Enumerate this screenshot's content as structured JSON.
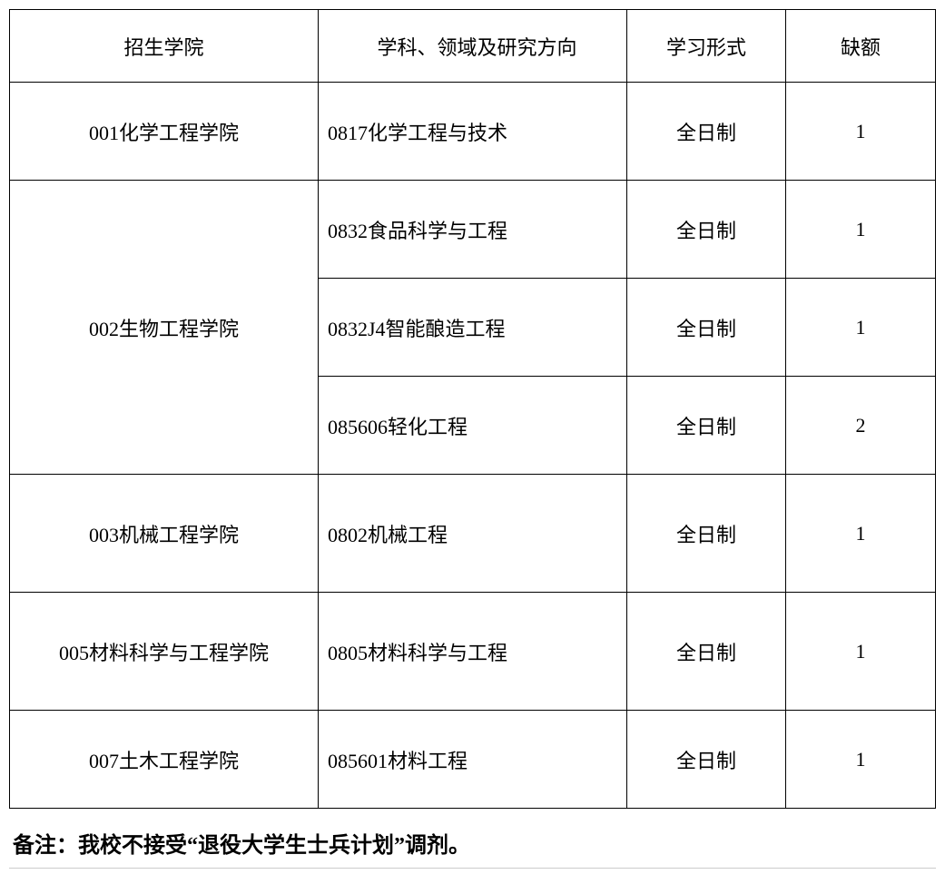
{
  "table": {
    "headers": {
      "college": "招生学院",
      "subject": "学科、领域及研究方向",
      "mode": "学习形式",
      "quota": "缺额"
    },
    "rows": [
      {
        "college": "001化学工程学院",
        "subject": "0817化学工程与技术",
        "mode": "全日制",
        "quota": "1",
        "rowspan": 1
      },
      {
        "college": "002生物工程学院",
        "subject": "0832食品科学与工程",
        "mode": "全日制",
        "quota": "1",
        "rowspan": 3
      },
      {
        "subject": "0832J4智能酿造工程",
        "mode": "全日制",
        "quota": "1"
      },
      {
        "subject": "085606轻化工程",
        "mode": "全日制",
        "quota": "2"
      },
      {
        "college": "003机械工程学院",
        "subject": "0802机械工程",
        "mode": "全日制",
        "quota": "1",
        "rowspan": 1
      },
      {
        "college": "005材料科学与工程学院",
        "subject": "0805材料科学与工程",
        "mode": "全日制",
        "quota": "1",
        "rowspan": 1
      },
      {
        "college": "007土木工程学院",
        "subject": "085601材料工程",
        "mode": "全日制",
        "quota": "1",
        "rowspan": 1
      }
    ]
  },
  "note": "备注：我校不接受“退役大学生士兵计划”调剂。",
  "styles": {
    "font_family": "SimSun",
    "border_color": "#000000",
    "text_color": "#000000",
    "background_color": "#ffffff",
    "cell_font_size": 22,
    "note_font_size": 24,
    "header_row_height": 80,
    "data_row_height": 108,
    "data_row_tall_height": 130,
    "col_widths": {
      "college": 340,
      "subject": 340,
      "mode": 175,
      "quota": 165
    }
  }
}
